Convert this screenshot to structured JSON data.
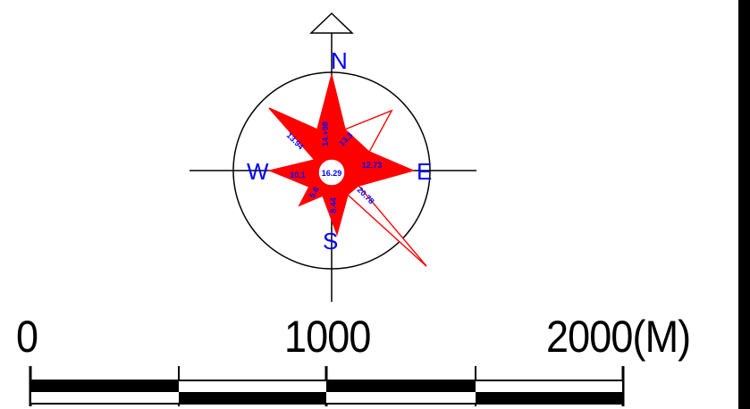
{
  "compass": {
    "labels": {
      "north": "N",
      "south": "S",
      "east": "E",
      "west": "W"
    },
    "colors": {
      "rose_fill": "#ff0000",
      "rose_stroke": "#ff0000",
      "value_text": "#0000ff",
      "line": "#000000"
    }
  },
  "wind_rose": {
    "center_value": "16.29",
    "directions": [
      {
        "direction": "N",
        "value": "14.+98"
      },
      {
        "direction": "NE",
        "value": "13.3"
      },
      {
        "direction": "E",
        "value": "12.73"
      },
      {
        "direction": "SE",
        "value": "20.78"
      },
      {
        "direction": "S",
        "value": "8.44"
      },
      {
        "direction": "SW",
        "value": "5.6"
      },
      {
        "direction": "W",
        "value": "10.1"
      },
      {
        "direction": "NW",
        "value": "13.94"
      }
    ]
  },
  "scale_bar": {
    "label_0": "0",
    "label_mid": "1000",
    "label_end": "2000(M)",
    "segments": 4
  }
}
